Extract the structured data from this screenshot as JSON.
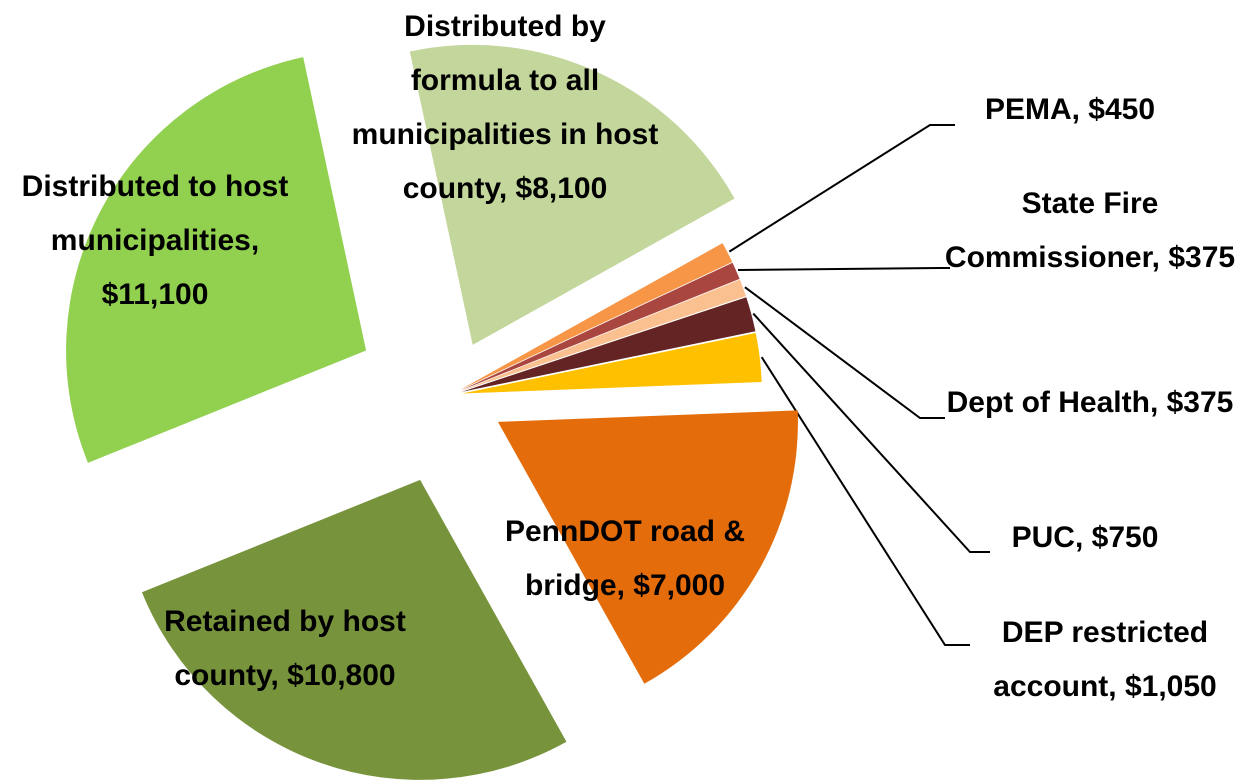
{
  "chart_data": {
    "type": "pie",
    "categories": [
      "Distributed to host municipalities,",
      "Distributed by formula to all municipalities in host county,",
      "PEMA,",
      "State Fire Commissioner,",
      "Dept of Health,",
      "PUC,",
      "DEP restricted account,",
      "PennDOT road & bridge,",
      "Retained by host county,"
    ],
    "values": [
      11100,
      8100,
      450,
      375,
      375,
      750,
      1050,
      7000,
      10800
    ],
    "value_labels": [
      "$11,100",
      "$8,100",
      "$450",
      "$375",
      "$375",
      "$750",
      "$1,050",
      "$7,000",
      "$10,800"
    ],
    "colors": [
      "#92d050",
      "#c3d69b",
      "#f79646",
      "#a9463f",
      "#fac090",
      "#632423",
      "#ffc000",
      "#e46c0a",
      "#77933c"
    ]
  }
}
